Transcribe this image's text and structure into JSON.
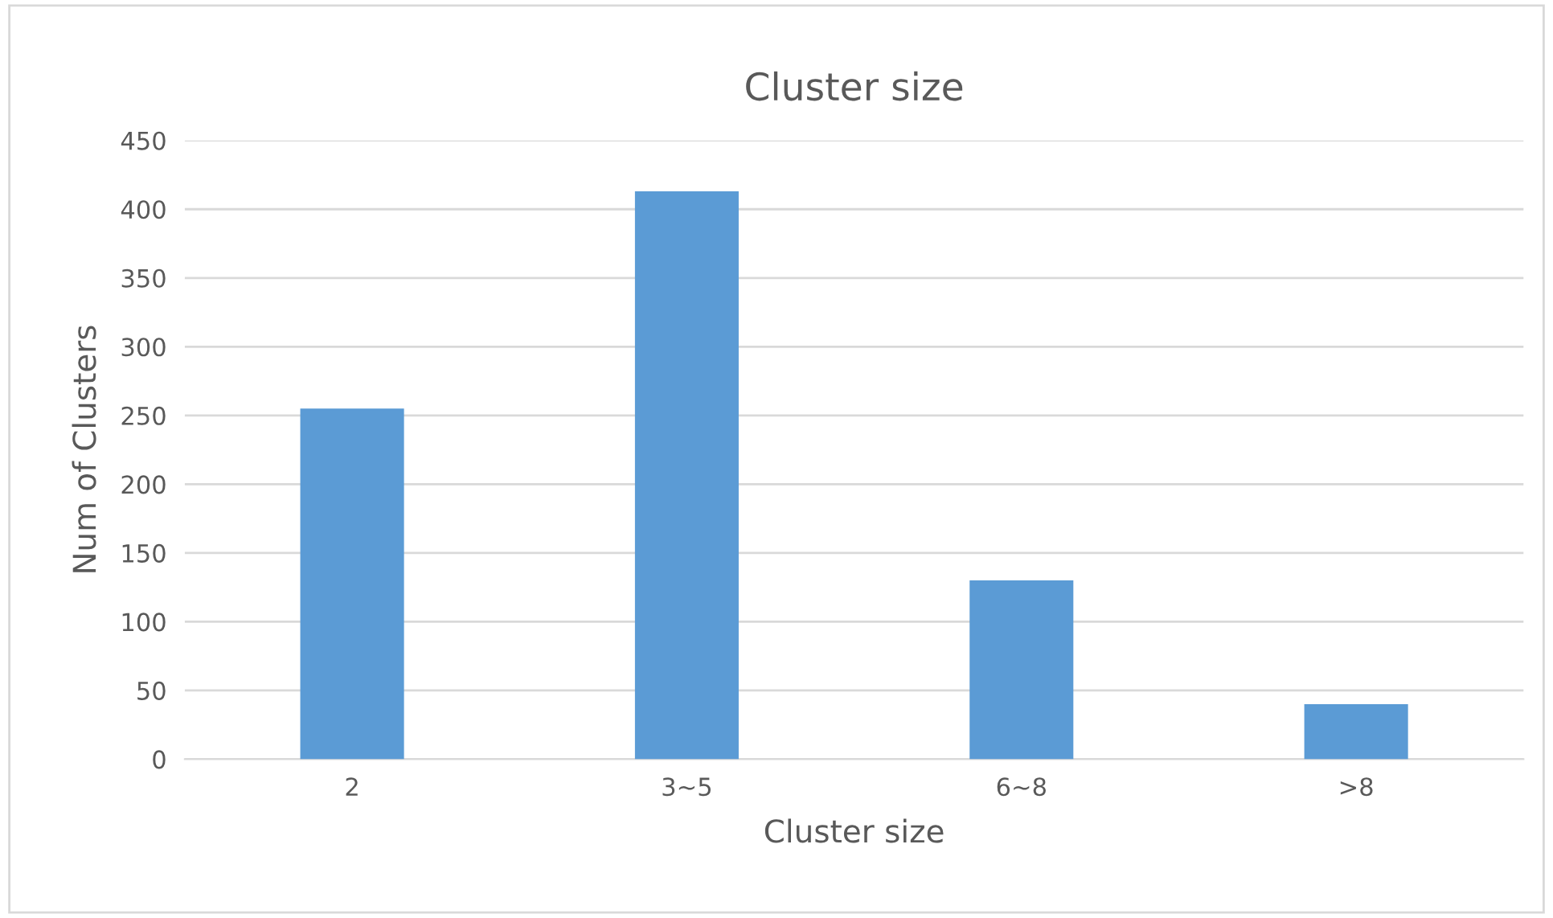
{
  "chart_data": {
    "type": "bar",
    "title": "Cluster size",
    "xlabel": "Cluster size",
    "ylabel": "Num of Clusters",
    "categories": [
      "2",
      "3~5",
      "6~8",
      ">8"
    ],
    "values": [
      255,
      413,
      130,
      40
    ],
    "color": "#5b9bd5",
    "ylim": [
      0,
      450
    ],
    "yticks": [
      0,
      50,
      100,
      150,
      200,
      250,
      300,
      350,
      400,
      450
    ],
    "grid": "y",
    "legend": false
  }
}
